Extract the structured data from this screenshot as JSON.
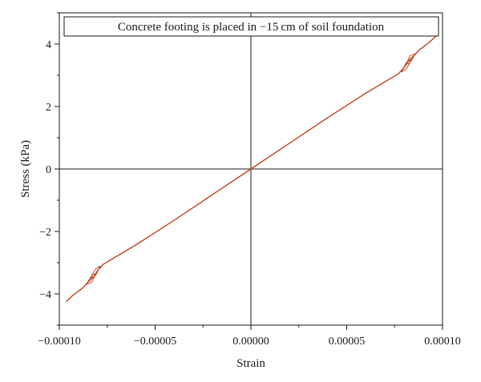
{
  "chart_data": {
    "type": "line",
    "title": "Concrete footing is placed in −15 cm of soil foundation",
    "xlabel": "Strain",
    "ylabel": "Stress (kPa)",
    "xlim": [
      -0.0001,
      0.0001
    ],
    "ylim": [
      -5,
      5
    ],
    "x_ticks": [
      -0.0001,
      -5e-05,
      0,
      5e-05,
      0.0001
    ],
    "x_tick_labels": [
      "−0.00010",
      "−0.00005",
      "0.00000",
      "0.00005",
      "0.00010"
    ],
    "y_ticks": [
      -4,
      -2,
      0,
      2,
      4
    ],
    "y_tick_labels": [
      "−4",
      "−2",
      "0",
      "2",
      "4"
    ],
    "grid": false,
    "reference_lines": {
      "x0": true,
      "y0": true
    },
    "series": [
      {
        "color": "#c1441e",
        "x": [
          -9.65e-05,
          -9.3e-05,
          -8.8e-05,
          -8.5e-05,
          -8.2e-05,
          -8e-05,
          -7.7e-05,
          -6e-05,
          -4e-05,
          -2e-05,
          0,
          2e-05,
          4e-05,
          6e-05,
          7.7e-05,
          8e-05,
          8.2e-05,
          8.5e-05,
          8.8e-05,
          9.3e-05,
          9.65e-05
        ],
        "y": [
          -4.25,
          -4.05,
          -3.82,
          -3.62,
          -3.45,
          -3.25,
          -3.05,
          -2.43,
          -1.64,
          -0.82,
          0,
          0.82,
          1.64,
          2.43,
          3.05,
          3.25,
          3.45,
          3.62,
          3.82,
          4.05,
          4.25
        ]
      }
    ],
    "hysteresis_loops": [
      {
        "x": [
          -7.85e-05,
          -8.1e-05,
          -8.4e-05,
          -8.1e-05,
          -7.85e-05
        ],
        "y": [
          -3.1,
          -3.2,
          -3.5,
          -3.4,
          -3.1
        ]
      },
      {
        "x": [
          -8.1e-05,
          -8.3e-05,
          -8.6e-05,
          -8.3e-05,
          -8.1e-05
        ],
        "y": [
          -3.35,
          -3.4,
          -3.7,
          -3.62,
          -3.35
        ]
      },
      {
        "x": [
          7.85e-05,
          8.1e-05,
          8.4e-05,
          8.1e-05,
          7.85e-05
        ],
        "y": [
          3.1,
          3.2,
          3.5,
          3.4,
          3.1
        ]
      },
      {
        "x": [
          8.1e-05,
          8.3e-05,
          8.6e-05,
          8.3e-05,
          8.1e-05
        ],
        "y": [
          3.35,
          3.4,
          3.7,
          3.62,
          3.35
        ]
      }
    ]
  }
}
